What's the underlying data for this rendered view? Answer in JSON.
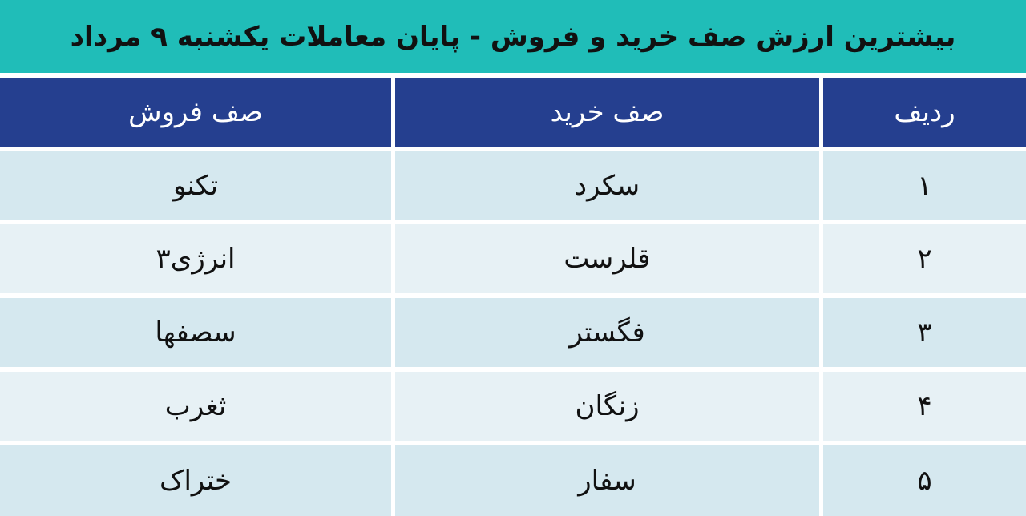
{
  "title": "بیشترین ارزش صف خرید و فروش - پایان معاملات یکشنبه ۹ مرداد",
  "colors": {
    "title_bg": "#20bdb8",
    "header_bg": "#253f8f",
    "row_odd": "#d5e8ef",
    "row_even": "#e7f1f5"
  },
  "table": {
    "headers": [
      "ردیف",
      "صف خرید",
      "صف فروش"
    ],
    "rows": [
      [
        "۱",
        "سکرد",
        "تکنو"
      ],
      [
        "۲",
        "قلرست",
        "انرژی۳"
      ],
      [
        "۳",
        "فگستر",
        "سصفها"
      ],
      [
        "۴",
        "زنگان",
        "ثغرب"
      ],
      [
        "۵",
        "سفار",
        "ختراک"
      ]
    ]
  }
}
